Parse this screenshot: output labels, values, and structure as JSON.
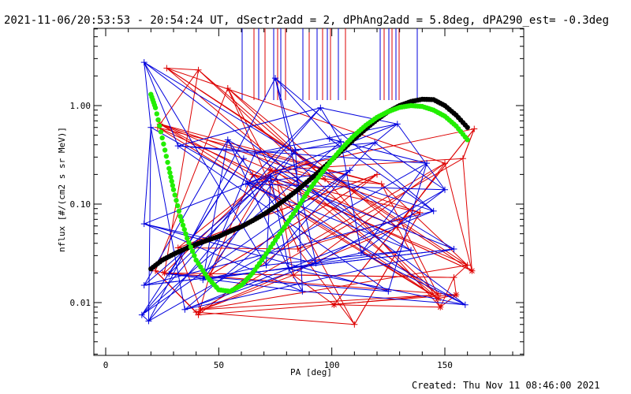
{
  "header": {
    "title": "2021-11-06/20:53:53 - 20:54:24 UT, dSectr2add = 2, dPhAng2add = 5.8deg, dPA290_est= -0.3deg"
  },
  "footer": {
    "created": "Created: Thu Nov 11 08:46:00 2021"
  },
  "colors": {
    "red_traces": "#dd0000",
    "blue_traces": "#0000dd",
    "black_fit": "#000000",
    "green_fit": "#22ee00",
    "axes": "#000000",
    "background": "#ffffff"
  },
  "chart_data": {
    "type": "line",
    "title": "2021-11-06/20:53:53 - 20:54:24 UT, dSectr2add = 2, dPhAng2add = 5.8deg, dPA290_est= -0.3deg",
    "xlabel": "PA [deg]",
    "ylabel": "nflux [#/(cm2 s sr MeV)]",
    "xlim": [
      -10,
      190
    ],
    "ylim": [
      0.003,
      5.0
    ],
    "yscale": "log",
    "x_ticks": [
      0,
      50,
      100,
      150
    ],
    "x_tick_labels": [
      "0",
      "50",
      "100",
      "150"
    ],
    "y_ticks": [
      0.01,
      0.1,
      1.0
    ],
    "y_tick_labels": [
      "0.01",
      "0.10",
      "1.00"
    ],
    "grid": false,
    "markers": {
      "red": [
        [
          22,
          0.021
        ],
        [
          32,
          0.036
        ],
        [
          40,
          0.008
        ],
        [
          41,
          0.0075
        ],
        [
          46,
          0.019
        ],
        [
          75,
          0.22
        ],
        [
          83,
          0.019
        ],
        [
          97,
          0.18
        ],
        [
          110,
          0.006
        ],
        [
          122,
          0.16
        ],
        [
          129,
          0.058
        ],
        [
          139,
          0.082
        ],
        [
          150,
          0.26
        ],
        [
          154,
          0.018
        ],
        [
          158,
          0.29
        ],
        [
          163,
          0.58
        ],
        [
          23,
          0.6
        ],
        [
          27,
          2.4
        ],
        [
          41,
          2.3
        ],
        [
          54,
          1.5
        ],
        [
          65,
          0.2
        ],
        [
          85,
          0.035
        ],
        [
          120,
          0.2
        ],
        [
          147,
          0.012
        ],
        [
          160,
          0.024
        ]
      ],
      "red_asterisks": [
        [
          24,
          0.65
        ],
        [
          26,
          0.02
        ],
        [
          42,
          0.0085
        ],
        [
          73,
          0.22
        ],
        [
          101,
          0.0095
        ],
        [
          147,
          0.011
        ],
        [
          148,
          0.009
        ],
        [
          155,
          0.012
        ],
        [
          162,
          0.021
        ]
      ],
      "blue": [
        [
          16,
          0.0075
        ],
        [
          17,
          2.75
        ],
        [
          17,
          0.015
        ],
        [
          17,
          0.063
        ],
        [
          19,
          0.0065
        ],
        [
          20,
          0.6
        ],
        [
          28,
          0.0195
        ],
        [
          32,
          0.39
        ],
        [
          35,
          0.0085
        ],
        [
          43,
          0.017
        ],
        [
          54,
          0.45
        ],
        [
          61,
          0.29
        ],
        [
          62,
          0.16
        ],
        [
          66,
          0.33
        ],
        [
          71,
          0.024
        ],
        [
          73,
          0.19
        ],
        [
          75,
          1.9
        ],
        [
          81,
          0.022
        ],
        [
          84,
          0.35
        ],
        [
          87,
          0.013
        ],
        [
          93,
          0.025
        ],
        [
          95,
          0.95
        ],
        [
          99,
          0.46
        ],
        [
          104,
          0.43
        ],
        [
          108,
          0.22
        ],
        [
          113,
          0.032
        ],
        [
          119,
          0.42
        ],
        [
          125,
          0.013
        ],
        [
          129,
          0.65
        ],
        [
          135,
          0.034
        ],
        [
          142,
          0.26
        ],
        [
          145,
          0.085
        ],
        [
          150,
          0.14
        ],
        [
          154,
          0.035
        ],
        [
          159,
          0.0095
        ]
      ]
    },
    "series": [
      {
        "name": "",
        "color": "#000000",
        "x": [
          20,
          25,
          30,
          35,
          40,
          45,
          50,
          55,
          60,
          65,
          70,
          75,
          80,
          85,
          90,
          95,
          100,
          105,
          110,
          115,
          120,
          125,
          130,
          135,
          140,
          145,
          150,
          155,
          160
        ],
        "y": [
          0.022,
          0.027,
          0.031,
          0.035,
          0.039,
          0.043,
          0.047,
          0.053,
          0.059,
          0.068,
          0.079,
          0.094,
          0.114,
          0.14,
          0.175,
          0.22,
          0.28,
          0.36,
          0.46,
          0.58,
          0.72,
          0.87,
          1.0,
          1.1,
          1.16,
          1.15,
          1.0,
          0.8,
          0.6
        ]
      },
      {
        "name": "",
        "color": "#22ee00",
        "x": [
          20,
          22,
          25,
          28,
          30,
          33,
          36,
          40,
          45,
          50,
          55,
          60,
          65,
          70,
          75,
          80,
          85,
          90,
          95,
          100,
          105,
          110,
          115,
          120,
          125,
          130,
          135,
          140,
          145,
          150,
          155,
          160
        ],
        "y": [
          1.3,
          0.95,
          0.47,
          0.23,
          0.14,
          0.075,
          0.045,
          0.027,
          0.018,
          0.0135,
          0.013,
          0.015,
          0.02,
          0.029,
          0.043,
          0.063,
          0.093,
          0.14,
          0.2,
          0.28,
          0.38,
          0.5,
          0.63,
          0.76,
          0.87,
          0.96,
          1.0,
          0.98,
          0.9,
          0.78,
          0.62,
          0.45
        ]
      }
    ]
  }
}
